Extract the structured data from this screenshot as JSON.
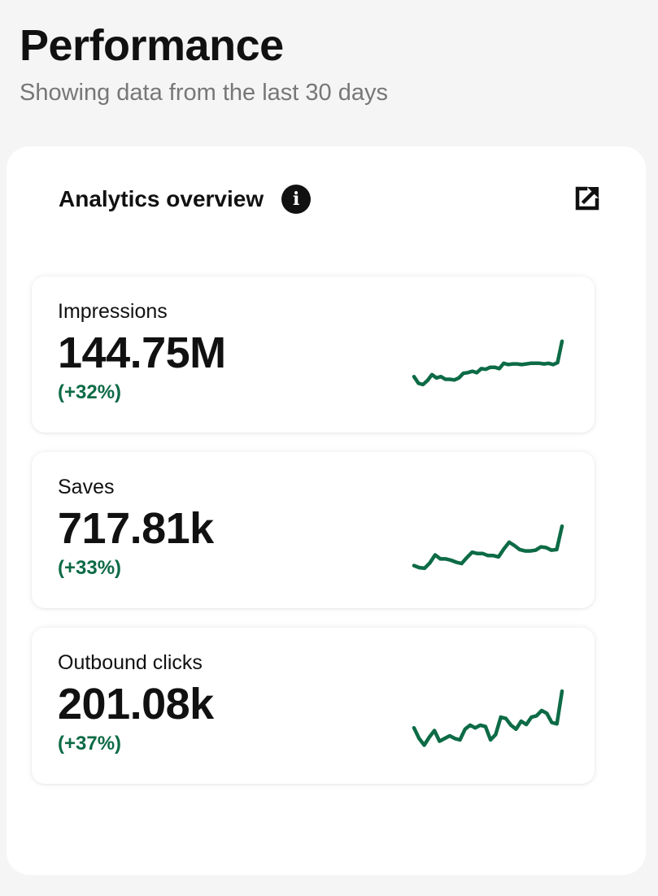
{
  "page": {
    "title": "Performance",
    "subtitle": "Showing data from the last 30 days"
  },
  "panel": {
    "title": "Analytics overview",
    "info_icon": "info-icon",
    "external_icon": "external-link-icon"
  },
  "colors": {
    "trend_green": "#0d6b46",
    "text": "#111111",
    "muted": "#777777",
    "background": "#f5f5f5",
    "card": "#ffffff"
  },
  "metrics": [
    {
      "label": "Impressions",
      "value": "144.75M",
      "change": "(+32%)",
      "trend": [
        40,
        30,
        28,
        34,
        43,
        38,
        40,
        36,
        36,
        35,
        38,
        45,
        46,
        48,
        46,
        52,
        51,
        54,
        54,
        52,
        60,
        58,
        59,
        59,
        58,
        59,
        60,
        60,
        60,
        59,
        60,
        58,
        61,
        93
      ]
    },
    {
      "label": "Saves",
      "value": "717.81k",
      "change": "(+33%)",
      "trend": [
        20,
        17,
        16,
        24,
        36,
        30,
        30,
        28,
        25,
        23,
        32,
        40,
        38,
        38,
        35,
        35,
        33,
        45,
        55,
        50,
        44,
        42,
        42,
        43,
        48,
        47,
        43,
        44,
        79
      ]
    },
    {
      "label": "Outbound clicks",
      "value": "201.08k",
      "change": "(+37%)",
      "trend": [
        40,
        24,
        14,
        26,
        36,
        20,
        24,
        28,
        24,
        22,
        38,
        44,
        40,
        44,
        42,
        22,
        30,
        56,
        54,
        44,
        38,
        50,
        45,
        56,
        58,
        66,
        62,
        48,
        46,
        95
      ]
    }
  ]
}
